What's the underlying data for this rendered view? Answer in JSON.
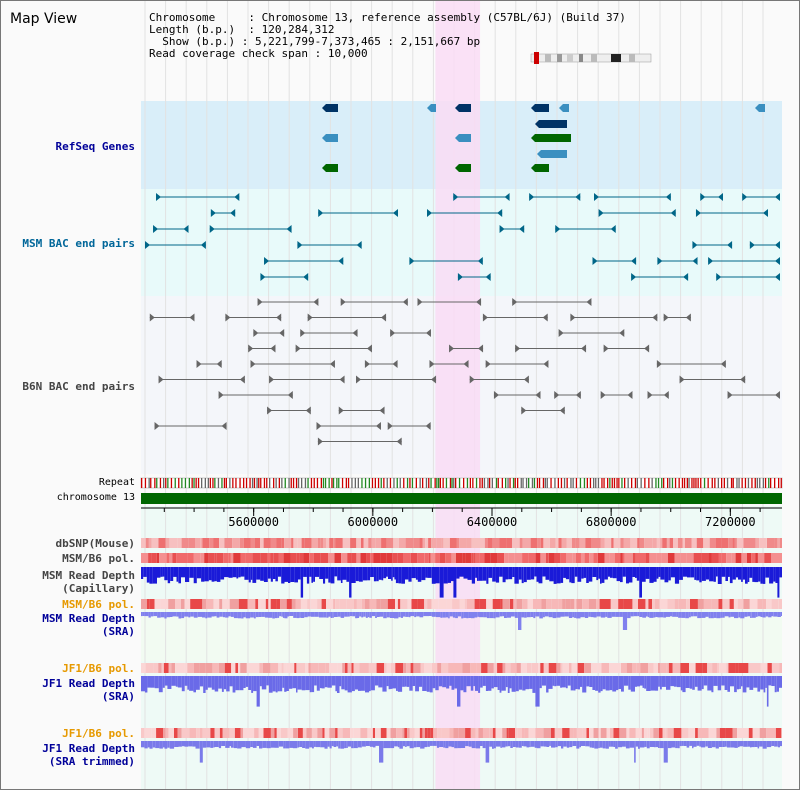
{
  "view": {
    "title": "Map View"
  },
  "info": {
    "chromosome_label": "Chromosome",
    "chromosome_value": "Chromosome 13, reference assembly (C57BL/6J) (Build 37)",
    "length_label": "Length (b.p.)",
    "length_value": "120,284,312",
    "show_label": "Show (b.p.)",
    "show_value": "5,221,799-7,373,465 : 2,151,667 bp",
    "coverage_label": "Read coverage check span",
    "coverage_value": "10,000"
  },
  "tracks": {
    "refseq": "RefSeq Genes",
    "msm_bac": "MSM BAC end pairs",
    "b6n_bac": "B6N BAC end pairs",
    "repeat": "Repeat",
    "chromosome": "chromosome 13",
    "dbsnp": "dbSNP(Mouse)",
    "msm_b6_pol_1": "MSM/B6 pol.",
    "msm_depth_cap_1": "MSM Read Depth",
    "msm_depth_cap_2": "(Capillary)",
    "msm_b6_pol_2": "MSM/B6 pol.",
    "msm_depth_sra_1": "MSM Read Depth",
    "msm_depth_sra_2": "(SRA)",
    "jf1_b6_pol_1": "JF1/B6 pol.",
    "jf1_depth_sra_1": "JF1 Read Depth",
    "jf1_depth_sra_2": "(SRA)",
    "jf1_b6_pol_2": "JF1/B6 pol.",
    "jf1_depth_trim_1": "JF1 Read Depth",
    "jf1_depth_trim_2": "(SRA trimmed)"
  },
  "axis": {
    "range": [
      5221799,
      7373465
    ],
    "ticks": [
      "5600000",
      "6000000",
      "6400000",
      "6800000",
      "7200000"
    ],
    "tick_values": [
      5600000,
      6000000,
      6400000,
      6800000,
      7200000
    ]
  },
  "highlight": {
    "start": 6210000,
    "end": 6360000
  },
  "colors": {
    "refseq_bg": "#d9eef9",
    "msm_bg": "#e8fafa",
    "b6n_bg": "#f4f6fa",
    "highlight": "#f9dcf4",
    "chromosome_bar": "#006600",
    "refseq_dark": "#003366",
    "refseq_mid": "#3a8fc0",
    "refseq_green": "#006600",
    "msm_color": "#006688",
    "b6n_color": "#666666",
    "label_dark": "#000000",
    "label_blue": "#000099",
    "label_orange": "#e69900",
    "label_teal": "#006699"
  }
}
